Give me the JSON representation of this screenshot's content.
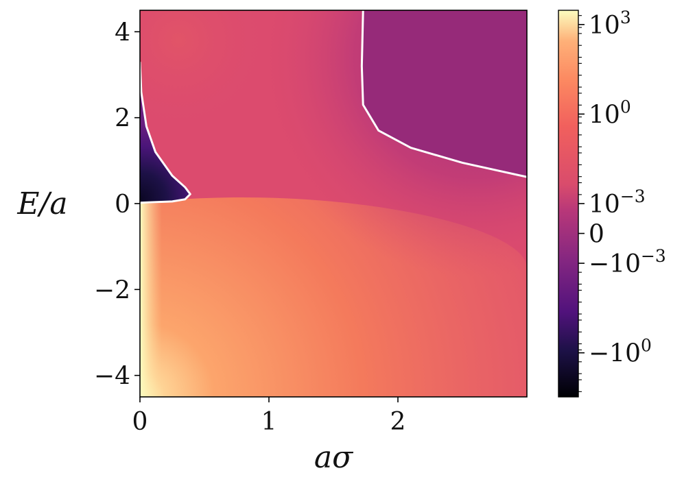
{
  "chart_data": {
    "type": "heatmap",
    "title": "",
    "xlabel": "aσ",
    "ylabel": "E/a",
    "xlim": [
      0,
      3.0
    ],
    "ylim": [
      -4.5,
      4.5
    ],
    "x_ticks": [
      {
        "value": 0,
        "label": "0"
      },
      {
        "value": 1,
        "label": "1"
      },
      {
        "value": 2,
        "label": "2"
      }
    ],
    "y_ticks": [
      {
        "value": 4,
        "label": "4"
      },
      {
        "value": 2,
        "label": "2"
      },
      {
        "value": 0,
        "label": "0"
      },
      {
        "value": -2,
        "label": "−2"
      },
      {
        "value": -4,
        "label": "−4"
      }
    ],
    "colormap": "magma",
    "colorbar": {
      "scale": "symlog",
      "range": [
        -30,
        3000
      ],
      "ticks": [
        {
          "value": 1000,
          "label": "10",
          "exp": "3"
        },
        {
          "value": 1,
          "label": "10",
          "exp": "0"
        },
        {
          "value": 0.001,
          "label": "10",
          "exp": "−3"
        },
        {
          "value": 0,
          "label": "0",
          "exp": ""
        },
        {
          "value": -0.001,
          "label": "−10",
          "exp": "−3"
        },
        {
          "value": -1,
          "label": "−10",
          "exp": "0"
        }
      ]
    },
    "zero_contour": {
      "color": "#ffffff",
      "lobe_left": [
        [
          0.0,
          3.3
        ],
        [
          0.01,
          2.6
        ],
        [
          0.05,
          1.8
        ],
        [
          0.12,
          1.2
        ],
        [
          0.25,
          0.65
        ],
        [
          0.35,
          0.38
        ],
        [
          0.39,
          0.22
        ],
        [
          0.35,
          0.1
        ],
        [
          0.25,
          0.05
        ],
        [
          0.0,
          0.02
        ]
      ],
      "lobe_right": [
        [
          1.73,
          4.5
        ],
        [
          1.72,
          3.2
        ],
        [
          1.73,
          2.3
        ],
        [
          1.85,
          1.7
        ],
        [
          2.1,
          1.3
        ],
        [
          2.5,
          0.95
        ],
        [
          3.0,
          0.62
        ]
      ]
    },
    "region_colors": {
      "positive_small": "#dc4b6e",
      "positive_large": "#fcfdbf",
      "negative_small": "#962a79",
      "negative_large": "#1d1147"
    }
  }
}
